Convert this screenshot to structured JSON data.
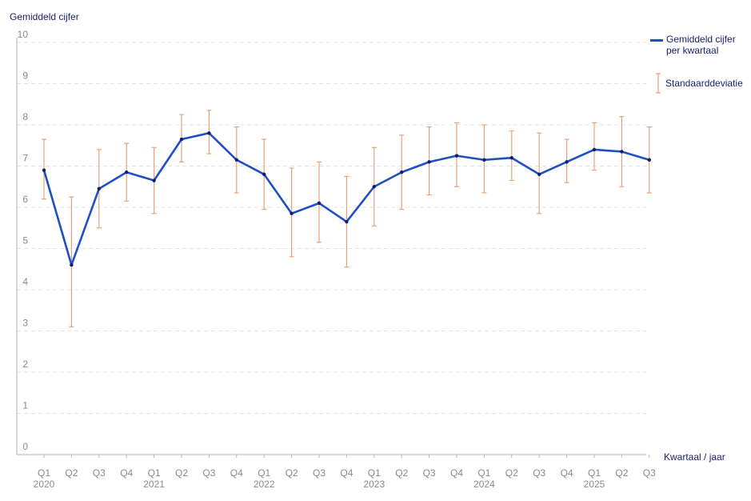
{
  "chart_data": {
    "type": "line",
    "ylabel": "Gemiddeld cijfer",
    "xlabel": "Kwartaal / jaar",
    "ylim": [
      0,
      10
    ],
    "yticks": [
      "0",
      "1",
      "2",
      "3",
      "4",
      "5",
      "6",
      "7",
      "8",
      "9",
      "10"
    ],
    "grid": true,
    "legend_position": "top-right",
    "quarters": [
      "Q1",
      "Q2",
      "Q3",
      "Q4",
      "Q1",
      "Q2",
      "Q3",
      "Q4",
      "Q1",
      "Q2",
      "Q3",
      "Q4",
      "Q1",
      "Q2",
      "Q3",
      "Q4",
      "Q1",
      "Q2",
      "Q3",
      "Q4",
      "Q1",
      "Q2",
      "Q3"
    ],
    "years": [
      "2020",
      "",
      "",
      "",
      "2021",
      "",
      "",
      "",
      "2022",
      "",
      "",
      "",
      "2023",
      "",
      "",
      "",
      "2024",
      "",
      "",
      "",
      "2025",
      "",
      ""
    ],
    "series": [
      {
        "name": "Gemiddeld cijfer per kwartaal",
        "legend_lines": [
          "Gemiddeld cijfer",
          "per kwartaal"
        ],
        "color": "#1f4fc4",
        "values": [
          6.9,
          4.6,
          6.45,
          6.85,
          6.65,
          7.65,
          7.8,
          7.15,
          6.8,
          5.85,
          6.1,
          5.65,
          6.5,
          6.85,
          7.1,
          7.25,
          7.15,
          7.2,
          6.8,
          7.1,
          7.4,
          7.35,
          7.15
        ]
      }
    ],
    "error_bars": {
      "name": "Standaarddeviatie",
      "color": "#e8a27a",
      "lower": [
        6.2,
        3.1,
        5.5,
        6.15,
        5.85,
        7.1,
        7.3,
        6.35,
        5.95,
        4.8,
        5.15,
        4.55,
        5.55,
        5.95,
        6.3,
        6.5,
        6.35,
        6.65,
        5.85,
        6.6,
        6.9,
        6.5,
        6.35
      ],
      "upper": [
        7.65,
        6.25,
        7.4,
        7.55,
        7.45,
        8.25,
        8.35,
        7.95,
        7.65,
        6.95,
        7.1,
        6.75,
        7.45,
        7.75,
        7.95,
        8.05,
        8.0,
        7.85,
        7.8,
        7.65,
        8.05,
        8.2,
        7.95
      ]
    }
  }
}
